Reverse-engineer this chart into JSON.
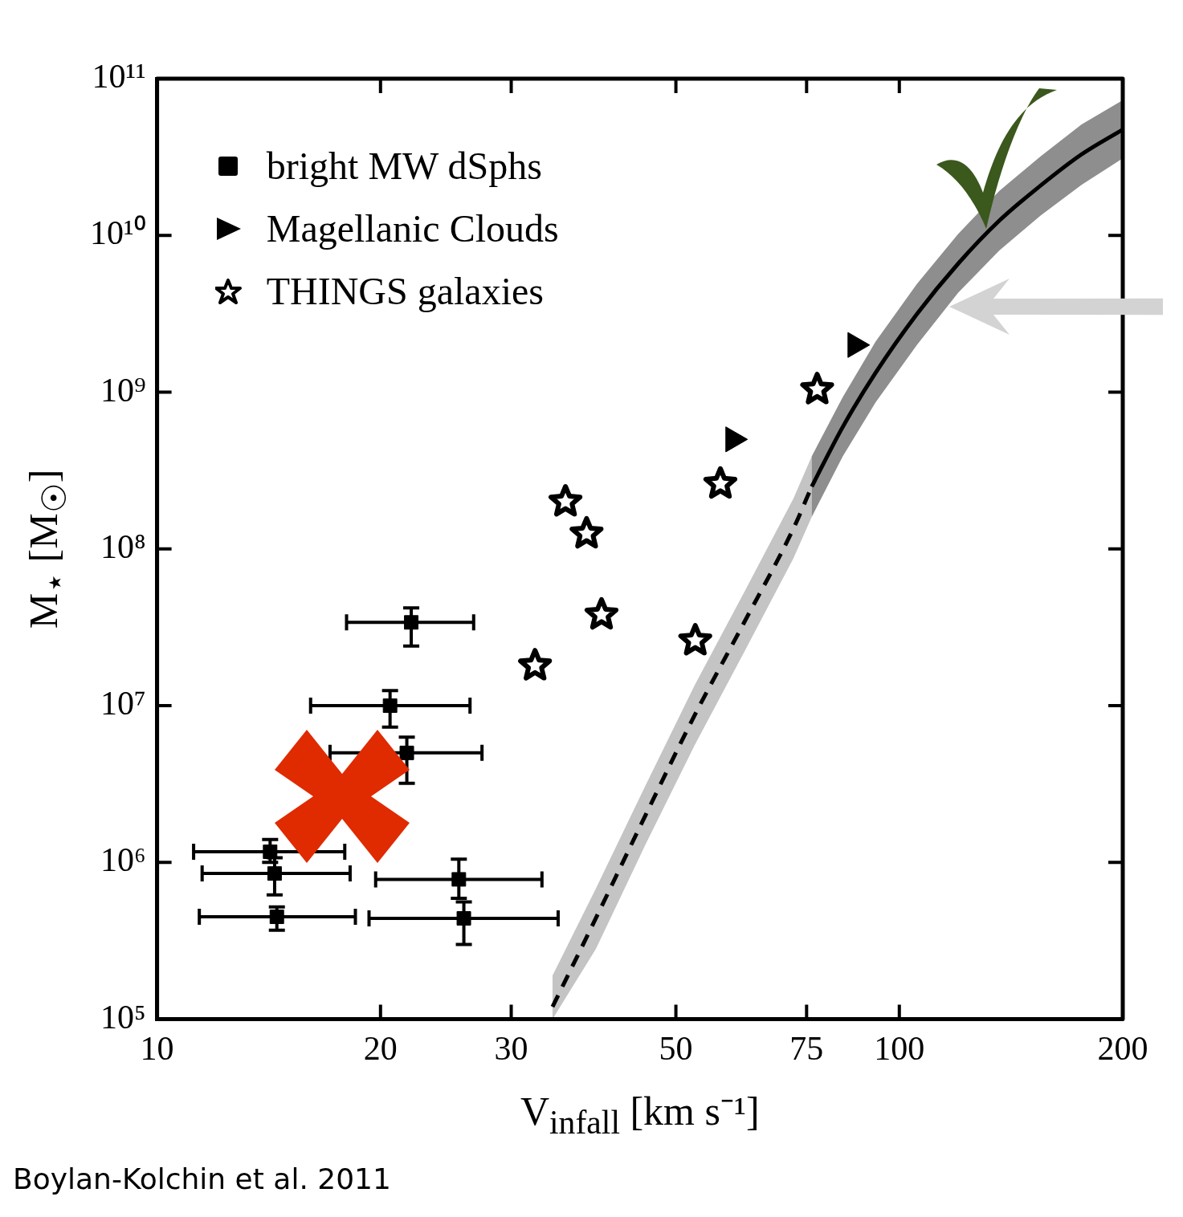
{
  "chart_data": {
    "type": "scatter",
    "xlabel": "V$_{infall}$ [km s⁻¹]",
    "ylabel": "M$_{⋆}$ [M$_{☉}$]",
    "log": "xy",
    "grid": false,
    "legend": "top left",
    "xlim": [
      10,
      200
    ],
    "xticks": [
      10,
      20,
      30,
      50,
      75,
      100,
      200
    ],
    "ylim": [
      100000,
      100000000000
    ],
    "yticks": [
      {
        "value": 100000,
        "label": "10⁵"
      },
      {
        "value": 1000000,
        "label": "10⁶"
      },
      {
        "value": 10000000,
        "label": "10⁷"
      },
      {
        "value": 100000000,
        "label": "10⁸"
      },
      {
        "value": 1000000000,
        "label": "10⁹"
      },
      {
        "value": 10000000000,
        "label": "10¹⁰"
      },
      {
        "value": 100000000000,
        "label": "10¹¹"
      }
    ],
    "annotations": [
      "Boylan-Kolchin et al. 2011"
    ],
    "series": [
      {
        "type": "line",
        "line_style": "dashed",
        "color": "#000000",
        "x": [
          34.1,
          39,
          45.5,
          53,
          61.8,
          72,
          76.2
        ],
        "values": [
          120000.0,
          440000.0,
          2000000.0,
          8700000.0,
          34000000.0,
          135000000.0,
          250000000.0
        ],
        "lower": [
          100000.0,
          280000.0,
          1300000.0,
          5600000.0,
          22000000.0,
          87000000.0,
          160000000.0
        ],
        "upper": [
          190000.0,
          680000.0,
          3100000.0,
          13500000.0,
          53000000.0,
          210000000.0,
          390000000.0
        ]
      },
      {
        "type": "line",
        "line_style": "solid",
        "color": "#000000",
        "x": [
          76.2,
          83.9,
          92.9,
          105.6,
          120,
          136.3,
          155,
          176,
          200
        ],
        "values": [
          250000000.0,
          600000000.0,
          1330000000.0,
          3150000000.0,
          6600000000.0,
          12400000000.0,
          20800000000.0,
          32900000000.0,
          47400000000.0
        ],
        "lower": [
          160000000.0,
          390000000.0,
          860000000.0,
          2000000000.0,
          4300000000.0,
          8000000000.0,
          13400000000.0,
          21000000000.0,
          31000000000.0
        ],
        "upper": [
          390000000.0,
          930000000.0,
          2100000000.0,
          4900000000.0,
          10200000000.0,
          19200000000.0,
          32000000000.0,
          51000000000.0,
          73000000000.0
        ]
      },
      {
        "name": "bright MW dSphs",
        "marker": "square",
        "color": "#000000",
        "x": [
          22,
          20.6,
          21.7,
          14.2,
          14.4,
          14.5,
          25.5,
          25.9
        ],
        "values": [
          34000000.0,
          10000000.0,
          5000000.0,
          1170000.0,
          850000.0,
          450000.0,
          780000.0,
          440000.0
        ],
        "errors": [
          [
            24000000.0,
            42000000.0
          ],
          [
            7300000.0,
            12500000.0
          ],
          [
            3200000.0,
            6300000.0
          ],
          [
            1000000.0,
            1400000.0
          ],
          [
            620000.0,
            1070000.0
          ],
          [
            370000.0,
            520000.0
          ],
          [
            590000.0,
            1050000.0
          ],
          [
            300000.0,
            560000.0
          ]
        ],
        "xerrors": [
          [
            18,
            26.7
          ],
          [
            16.1,
            26.4
          ],
          [
            17.1,
            27.4
          ],
          [
            11.2,
            17.9
          ],
          [
            11.5,
            18.2
          ],
          [
            11.4,
            18.5
          ],
          [
            19.7,
            33
          ],
          [
            19.3,
            34.7
          ]
        ]
      },
      {
        "name": "Magellanic Clouds",
        "marker": "triangle",
        "color": "#000000",
        "x": [
          59.7,
          87.2
        ],
        "values": [
          500000000.0,
          2000000000.0
        ]
      },
      {
        "name": "THINGS galaxies",
        "marker": "star",
        "color": "#000000",
        "x": [
          35.5,
          37.9,
          39.7,
          32.3,
          53.1,
          57.4,
          77.5
        ],
        "values": [
          200000000.0,
          125000000.0,
          38000000.0,
          18000000.0,
          26000000.0,
          260000000.0,
          1040000000.0
        ]
      }
    ]
  }
}
